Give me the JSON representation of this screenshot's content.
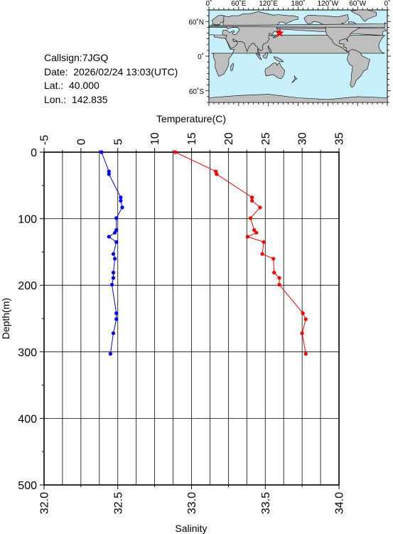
{
  "info": {
    "callsign": "Callsign:7JGQ",
    "date": "Date:  2026/02/24 13:03(UTC)",
    "lat": "Lat.:  40.000",
    "lon": "Lon.:  142.835"
  },
  "map": {
    "top_labels": [
      "0˚",
      "60˚E",
      "120˚E",
      "180˚",
      "120˚W",
      "60˚W",
      "0˚"
    ],
    "left_labels": [
      "60˚N",
      "0˚",
      "60˚S"
    ],
    "colors": {
      "ocean": "#c8f0fa",
      "land": "#bebebe",
      "marker": "#ff0000"
    },
    "station": {
      "lat": 40.0,
      "lon": 142.835
    }
  },
  "chart_data": {
    "type": "line",
    "ylabel": "Depth(m)",
    "ylim": [
      0,
      500
    ],
    "y_ticks": [
      0,
      100,
      200,
      300,
      400,
      500
    ],
    "y_reversed": true,
    "grid": true,
    "top_axis": {
      "label": "Temperature(C)",
      "range": [
        -5,
        35
      ],
      "ticks": [
        -5,
        0,
        5,
        10,
        15,
        20,
        25,
        30,
        35
      ]
    },
    "bottom_axis": {
      "label": "Salinity",
      "range": [
        32.0,
        34.0
      ],
      "ticks": [
        "32.0",
        "32.5",
        "33.0",
        "33.5",
        "34.0"
      ]
    },
    "series": [
      {
        "axis": "temperature",
        "color": "#ff0000",
        "points": [
          [
            12.8,
            0
          ],
          [
            18.3,
            29
          ],
          [
            18.4,
            33
          ],
          [
            23.2,
            68
          ],
          [
            23.2,
            73
          ],
          [
            24.3,
            83
          ],
          [
            23.0,
            99
          ],
          [
            23.5,
            117
          ],
          [
            23.8,
            121
          ],
          [
            22.6,
            127
          ],
          [
            24.8,
            135
          ],
          [
            24.6,
            153
          ],
          [
            26.1,
            160
          ],
          [
            26.2,
            181
          ],
          [
            26.9,
            189
          ],
          [
            26.9,
            199
          ],
          [
            30.1,
            242
          ],
          [
            30.5,
            251
          ],
          [
            30.0,
            272
          ],
          [
            30.5,
            303
          ]
        ]
      },
      {
        "axis": "salinity",
        "color": "#0000ff",
        "points": [
          [
            32.39,
            0
          ],
          [
            32.44,
            29
          ],
          [
            32.44,
            33
          ],
          [
            32.52,
            68
          ],
          [
            32.52,
            73
          ],
          [
            32.53,
            83
          ],
          [
            32.49,
            99
          ],
          [
            32.49,
            117
          ],
          [
            32.48,
            121
          ],
          [
            32.44,
            127
          ],
          [
            32.49,
            135
          ],
          [
            32.47,
            153
          ],
          [
            32.48,
            160
          ],
          [
            32.47,
            181
          ],
          [
            32.47,
            189
          ],
          [
            32.46,
            199
          ],
          [
            32.49,
            242
          ],
          [
            32.49,
            251
          ],
          [
            32.47,
            272
          ],
          [
            32.45,
            303
          ]
        ]
      }
    ]
  }
}
